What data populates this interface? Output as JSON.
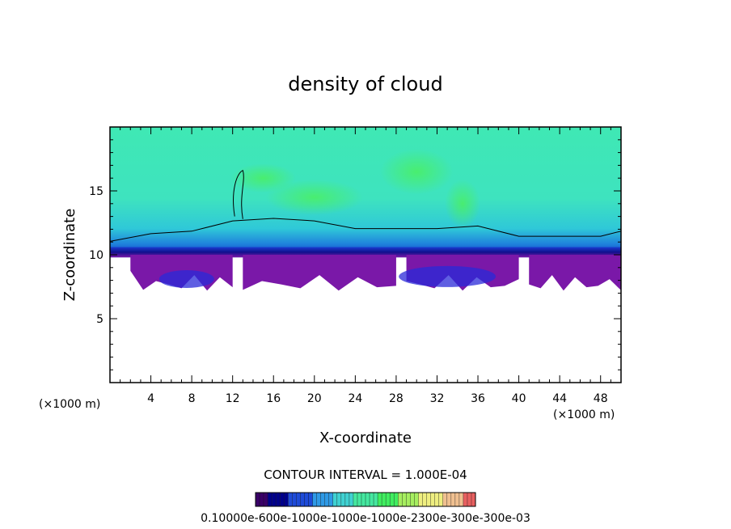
{
  "chart_data": {
    "type": "heatmap",
    "title": "density of cloud",
    "xlabel": "X-coordinate",
    "ylabel": "Z-coordinate",
    "x_unit": "(×1000 m)",
    "z_unit": "(×1000 m)",
    "xlim": [
      0,
      50
    ],
    "ylim": [
      0,
      20
    ],
    "x_ticks": [
      4,
      8,
      12,
      16,
      20,
      24,
      28,
      32,
      36,
      40,
      44,
      48
    ],
    "y_ticks": [
      5,
      10,
      15
    ],
    "contour_interval": "CONTOUR INTERVAL = 1.000E-04",
    "colorbar": {
      "min": 0.0001,
      "max": 0.001,
      "label_text": "0.10000e-600e-1000e-1000e-1000e-2300e-300e-300e-03",
      "colors": [
        "#3a0068",
        "#00008b",
        "#1e4bd8",
        "#2f9ae6",
        "#3fd2d2",
        "#45e8a0",
        "#40ee60",
        "#a6ee60",
        "#eeee80",
        "#f0c090",
        "#e86060"
      ]
    },
    "layers": [
      {
        "name": "cloud-top",
        "x": [
          0,
          4,
          8,
          12,
          16,
          20,
          24,
          28,
          32,
          36,
          40,
          44,
          48,
          50
        ],
        "z": [
          11.2,
          11.4,
          12.0,
          12.4,
          13.0,
          12.4,
          12.2,
          11.8,
          12.2,
          12.0,
          11.6,
          11.2,
          11.6,
          11.6
        ]
      },
      {
        "name": "dense-band",
        "z_range": [
          9.8,
          10.6
        ]
      },
      {
        "name": "lower-patches",
        "x_ranges": [
          [
            2,
            12
          ],
          [
            13,
            28
          ],
          [
            29,
            40
          ],
          [
            41,
            50
          ]
        ],
        "z_range": [
          7.2,
          10.0
        ]
      }
    ]
  }
}
